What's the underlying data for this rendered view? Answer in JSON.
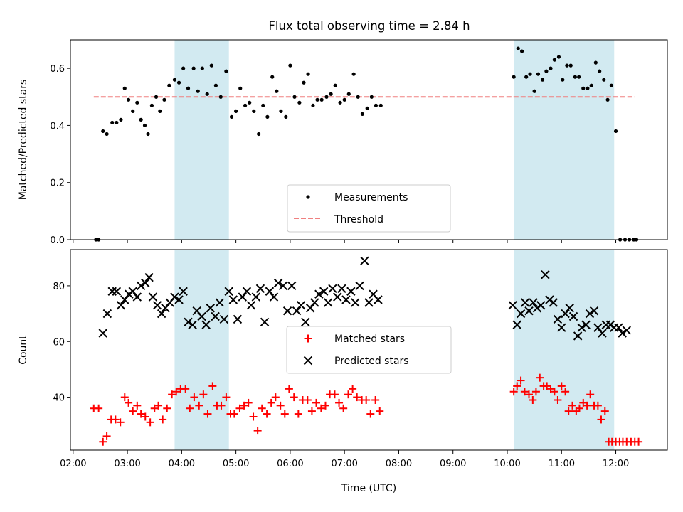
{
  "title": "Flux total observing time = 2.84 h",
  "colors": {
    "measurement": "#000000",
    "threshold": "#f08080",
    "matched": "#ff0000",
    "predicted": "#000000",
    "shade": "#add8e6"
  },
  "chart_data": [
    {
      "type": "scatter",
      "xlabel": "",
      "ylabel": "Matched/Predicted stars",
      "ylim": [
        0,
        0.7
      ],
      "yticks": [
        "0.0",
        "0.2",
        "0.4",
        "0.6"
      ],
      "shaded_intervals_hours": [
        [
          3.87,
          4.87
        ],
        [
          10.12,
          11.97
        ]
      ],
      "threshold": {
        "name": "Threshold",
        "value": 0.5,
        "x_range_hours": [
          2.38,
          12.35
        ],
        "style": "dashed"
      },
      "legend": [
        "Measurements",
        "Threshold"
      ],
      "legend_position": "lower center",
      "series": [
        {
          "name": "Measurements",
          "x_hours": [
            2.42,
            2.47,
            2.55,
            2.62,
            2.72,
            2.8,
            2.88,
            2.95,
            3.02,
            3.1,
            3.18,
            3.25,
            3.32,
            3.38,
            3.45,
            3.53,
            3.6,
            3.68,
            3.77,
            3.87,
            3.95,
            4.03,
            4.12,
            4.22,
            4.3,
            4.38,
            4.47,
            4.55,
            4.63,
            4.72,
            4.82,
            4.92,
            5.0,
            5.08,
            5.17,
            5.25,
            5.33,
            5.42,
            5.5,
            5.58,
            5.67,
            5.75,
            5.83,
            5.92,
            6.0,
            6.08,
            6.17,
            6.25,
            6.33,
            6.42,
            6.5,
            6.58,
            6.67,
            6.75,
            6.83,
            6.92,
            7.0,
            7.08,
            7.17,
            7.25,
            7.33,
            7.42,
            7.5,
            7.58,
            7.67,
            10.12,
            10.2,
            10.27,
            10.35,
            10.42,
            10.5,
            10.57,
            10.65,
            10.72,
            10.8,
            10.87,
            10.95,
            11.02,
            11.1,
            11.17,
            11.25,
            11.32,
            11.4,
            11.48,
            11.55,
            11.63,
            11.7,
            11.78,
            11.85,
            11.92,
            12.0,
            12.08,
            12.17,
            12.25,
            12.33,
            12.38
          ],
          "y": [
            0.0,
            0.0,
            0.38,
            0.37,
            0.41,
            0.41,
            0.42,
            0.53,
            0.49,
            0.45,
            0.48,
            0.42,
            0.4,
            0.37,
            0.47,
            0.5,
            0.45,
            0.49,
            0.54,
            0.56,
            0.55,
            0.6,
            0.53,
            0.6,
            0.52,
            0.6,
            0.51,
            0.61,
            0.54,
            0.5,
            0.59,
            0.43,
            0.45,
            0.53,
            0.47,
            0.48,
            0.45,
            0.37,
            0.47,
            0.43,
            0.57,
            0.52,
            0.45,
            0.43,
            0.61,
            0.5,
            0.48,
            0.55,
            0.58,
            0.47,
            0.49,
            0.49,
            0.5,
            0.51,
            0.54,
            0.48,
            0.49,
            0.51,
            0.58,
            0.5,
            0.44,
            0.46,
            0.5,
            0.47,
            0.47,
            0.57,
            0.67,
            0.66,
            0.57,
            0.58,
            0.52,
            0.58,
            0.56,
            0.59,
            0.6,
            0.63,
            0.64,
            0.56,
            0.61,
            0.61,
            0.57,
            0.57,
            0.53,
            0.53,
            0.54,
            0.62,
            0.59,
            0.56,
            0.49,
            0.54,
            0.38,
            0.0,
            0.0,
            0.0,
            0.0,
            0.0
          ]
        }
      ]
    },
    {
      "type": "scatter",
      "xlabel": "Time (UTC)",
      "ylabel": "Count",
      "ylim": [
        21,
        93
      ],
      "yticks": [
        "40",
        "60",
        "80"
      ],
      "xlim_hours": [
        1.95,
        12.95
      ],
      "xticks": [
        "02:00",
        "03:00",
        "04:00",
        "05:00",
        "06:00",
        "07:00",
        "08:00",
        "09:00",
        "10:00",
        "11:00",
        "12:00"
      ],
      "shaded_intervals_hours": [
        [
          3.87,
          4.87
        ],
        [
          10.12,
          11.97
        ]
      ],
      "legend": [
        "Matched stars",
        "Predicted stars"
      ],
      "legend_position": "center",
      "series": [
        {
          "name": "Matched stars",
          "marker": "+",
          "x_hours": [
            2.38,
            2.47,
            2.55,
            2.62,
            2.7,
            2.78,
            2.87,
            2.95,
            3.02,
            3.1,
            3.18,
            3.25,
            3.33,
            3.42,
            3.5,
            3.57,
            3.65,
            3.73,
            3.82,
            3.9,
            3.98,
            4.07,
            4.15,
            4.23,
            4.32,
            4.4,
            4.48,
            4.57,
            4.65,
            4.73,
            4.82,
            4.9,
            4.97,
            5.07,
            5.15,
            5.23,
            5.32,
            5.4,
            5.48,
            5.57,
            5.65,
            5.73,
            5.82,
            5.9,
            5.98,
            6.07,
            6.15,
            6.23,
            6.32,
            6.4,
            6.48,
            6.57,
            6.65,
            6.73,
            6.82,
            6.9,
            6.98,
            7.07,
            7.15,
            7.23,
            7.32,
            7.4,
            7.48,
            7.57,
            7.65,
            10.12,
            10.18,
            10.25,
            10.32,
            10.4,
            10.47,
            10.53,
            10.6,
            10.67,
            10.73,
            10.8,
            10.87,
            10.93,
            11.0,
            11.07,
            11.13,
            11.2,
            11.27,
            11.33,
            11.4,
            11.47,
            11.53,
            11.6,
            11.67,
            11.73,
            11.8,
            11.87,
            11.93,
            12.0,
            12.07,
            12.13,
            12.2,
            12.28,
            12.35,
            12.42
          ],
          "y": [
            36,
            36,
            24,
            26,
            32,
            32,
            31,
            40,
            38,
            35,
            37,
            34,
            33,
            31,
            36,
            37,
            32,
            36,
            41,
            42,
            43,
            43,
            36,
            40,
            37,
            41,
            34,
            44,
            37,
            37,
            40,
            34,
            34,
            36,
            37,
            38,
            33,
            28,
            36,
            34,
            38,
            40,
            37,
            34,
            43,
            40,
            34,
            39,
            39,
            35,
            38,
            36,
            37,
            41,
            41,
            38,
            36,
            41,
            43,
            40,
            39,
            39,
            34,
            39,
            35,
            42,
            44,
            46,
            42,
            41,
            39,
            42,
            47,
            44,
            44,
            43,
            42,
            39,
            44,
            42,
            35,
            37,
            35,
            36,
            38,
            37,
            41,
            37,
            37,
            32,
            35,
            24,
            24,
            24,
            24,
            24,
            24,
            24,
            24,
            24
          ]
        },
        {
          "name": "Predicted stars",
          "marker": "x",
          "x_hours": [
            2.55,
            2.63,
            2.72,
            2.8,
            2.88,
            2.95,
            3.03,
            3.1,
            3.18,
            3.25,
            3.33,
            3.4,
            3.47,
            3.55,
            3.63,
            3.7,
            3.78,
            3.87,
            3.95,
            4.03,
            4.12,
            4.2,
            4.28,
            4.37,
            4.45,
            4.53,
            4.62,
            4.7,
            4.78,
            4.87,
            4.95,
            5.03,
            5.12,
            5.2,
            5.28,
            5.37,
            5.45,
            5.53,
            5.62,
            5.7,
            5.78,
            5.87,
            5.95,
            6.03,
            6.12,
            6.2,
            6.28,
            6.37,
            6.45,
            6.53,
            6.62,
            6.7,
            6.78,
            6.87,
            6.95,
            7.03,
            7.12,
            7.2,
            7.28,
            7.37,
            7.45,
            7.53,
            7.62,
            10.1,
            10.18,
            10.25,
            10.33,
            10.4,
            10.48,
            10.55,
            10.62,
            10.7,
            10.78,
            10.85,
            10.93,
            11.0,
            11.07,
            11.15,
            11.22,
            11.3,
            11.37,
            11.45,
            11.52,
            11.6,
            11.67,
            11.75,
            11.82,
            11.9,
            11.97,
            12.05,
            12.12,
            12.2
          ],
          "y": [
            63,
            70,
            78,
            78,
            73,
            75,
            77,
            78,
            76,
            80,
            81,
            83,
            76,
            73,
            70,
            72,
            74,
            76,
            75,
            78,
            67,
            66,
            71,
            69,
            66,
            72,
            69,
            74,
            68,
            78,
            75,
            68,
            76,
            78,
            73,
            76,
            79,
            67,
            78,
            76,
            81,
            80,
            71,
            80,
            71,
            73,
            67,
            72,
            74,
            77,
            78,
            74,
            79,
            76,
            79,
            75,
            78,
            74,
            80,
            89,
            74,
            77,
            75,
            73,
            66,
            70,
            74,
            71,
            74,
            72,
            73,
            84,
            75,
            74,
            68,
            65,
            70,
            72,
            69,
            62,
            65,
            66,
            70,
            71,
            65,
            63,
            66,
            66,
            65,
            65,
            63,
            64
          ]
        }
      ]
    }
  ]
}
